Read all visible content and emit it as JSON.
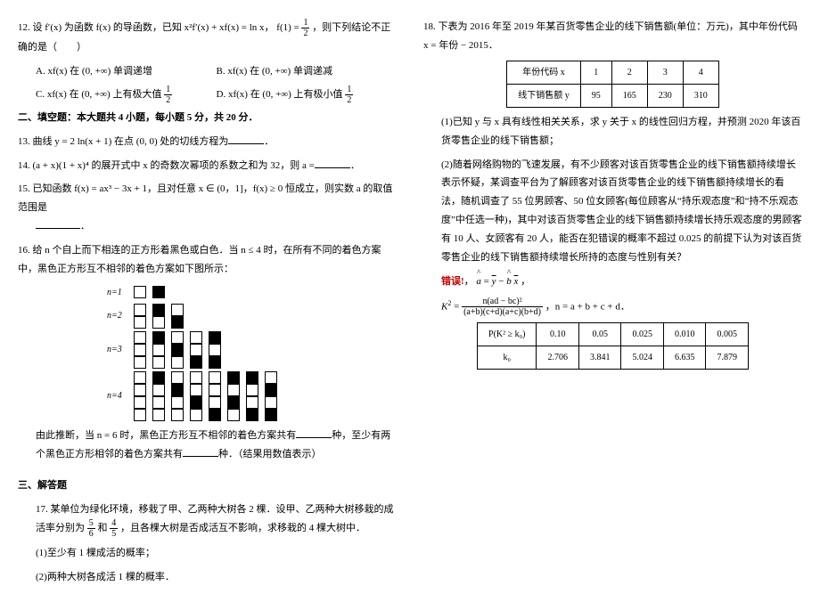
{
  "left": {
    "q12": {
      "stem": "12. 设 f′(x) 为函数 f(x) 的导函数，已知 x²f′(x) + xf(x) = ln x， f(1) = ",
      "stem2": "，则下列结论不正确的是（　　）",
      "A": "A.  xf(x) 在 (0, +∞) 单调递增",
      "B": "B.  xf(x) 在 (0, +∞) 单调递减",
      "C": "C.  xf(x) 在 (0, +∞) 上有极大值 ",
      "D": "D.  xf(x) 在 (0, +∞) 上有极小值 "
    },
    "sec2": "二、填空题：本大题共 4 小题，每小题 5 分，共 20 分．",
    "q13": "13. 曲线 y = 2 ln(x + 1) 在点 (0, 0) 处的切线方程为",
    "q13end": "．",
    "q14a": "14.  (a + x)(1 + x)⁴ 的展开式中 x 的奇数次幂项的系数之和为 32，则 a =",
    "q14b": "．",
    "q15": "15. 已知函数 f(x) = ax³ − 3x + 1，且对任意 x ∈ (0，1]，f(x) ≥ 0 恒成立，则实数 a 的取值范围是",
    "q15b": "．",
    "q16a": "16. 给 n 个自上而下相连的正方形着黑色或白色．当 n ≤ 4 时，在所有不同的着色方案中，黑色正方形互不相邻的着色方案如下图所示：",
    "grid": {
      "rows": [
        {
          "label": "n=1",
          "groups": [
            [
              "w"
            ],
            [
              "b"
            ]
          ]
        },
        {
          "label": "n=2",
          "groups": [
            [
              "w",
              "w"
            ],
            [
              "b",
              "w"
            ],
            [
              "w",
              "b"
            ]
          ]
        },
        {
          "label": "n=3",
          "groups": [
            [
              "w",
              "w",
              "w"
            ],
            [
              "b",
              "w",
              "w"
            ],
            [
              "w",
              "b",
              "w"
            ],
            [
              "w",
              "w",
              "b"
            ],
            [
              "b",
              "w",
              "b"
            ]
          ]
        },
        {
          "label": "n=4",
          "groups": [
            [
              "w",
              "w",
              "w",
              "w"
            ],
            [
              "b",
              "w",
              "w",
              "w"
            ],
            [
              "w",
              "b",
              "w",
              "w"
            ],
            [
              "w",
              "w",
              "b",
              "w"
            ],
            [
              "w",
              "w",
              "w",
              "b"
            ],
            [
              "b",
              "w",
              "b",
              "w"
            ],
            [
              "b",
              "w",
              "w",
              "b"
            ],
            [
              "w",
              "b",
              "w",
              "b"
            ]
          ]
        }
      ]
    },
    "q16b": "由此推断，当 n = 6 时，黑色正方形互不相邻的着色方案共有",
    "q16c": "种，至少有两个黑色正方形相邻的着色方案共有",
    "q16d": "种．（结果用数值表示）",
    "sec3": "三、解答题",
    "q17a": "17. 某单位为绿化环境，移栽了甲、乙两种大树各 2 棵．设甲、乙两种大树移栽的成活率分别为",
    "q17and": "和",
    "q17b": "，且各棵大树是否成活互不影响，求移栽的 4 棵大树中．",
    "q17_1": "(1)至少有 1 棵成活的概率；",
    "q17_2": "(2)两种大树各成活 1 棵的概率．"
  },
  "right": {
    "q18a": "18. 下表为 2016 年至 2019 年某百货零售企业的线下销售额(单位：万元)，其中年份代码 x = 年份 − 2015．",
    "table1": {
      "h": [
        "年份代码 x",
        "1",
        "2",
        "3",
        "4"
      ],
      "r": [
        "线下销售额 y",
        "95",
        "165",
        "230",
        "310"
      ]
    },
    "q18_1": "(1)已知 y 与 x 具有线性相关关系，求 y 关于 x 的线性回归方程，并预测 2020 年该百货零售企业的线下销售额；",
    "q18_2": "(2)随着网络购物的飞速发展，有不少顾客对该百货零售企业的线下销售额持续增长表示怀疑，某调查平台为了解顾客对该百货零售企业的线下销售额持续增长的看法，随机调查了 55 位男顾客、50 位女顾客(每位顾客从“持乐观态度”和“持不乐观态度”中任选一种)，其中对该百货零售企业的线下销售额持续增长持乐观态度的男顾客有 10 人、女顾客有 20 人，能否在犯错误的概率不超过 0.025 的前提下认为对该百货零售企业的线下销售额持续增长所持的态度与性别有关？",
    "err_label": "错误!",
    "formula_text": "，n = a + b + c + d．",
    "k2_num": "n(ad − bc)²",
    "k2_den": "(a+b)(c+d)(a+c)(b+d)",
    "table2": {
      "h": [
        "P(K² ≥ k₀)",
        "0.10",
        "0.05",
        "0.025",
        "0.010",
        "0.005"
      ],
      "r": [
        "k₀",
        "2.706",
        "3.841",
        "5.024",
        "6.635",
        "7.879"
      ]
    }
  },
  "fracs": {
    "half_n": "1",
    "half_d": "2",
    "f56_n": "5",
    "f56_d": "6",
    "f45_n": "4",
    "f45_d": "5"
  }
}
